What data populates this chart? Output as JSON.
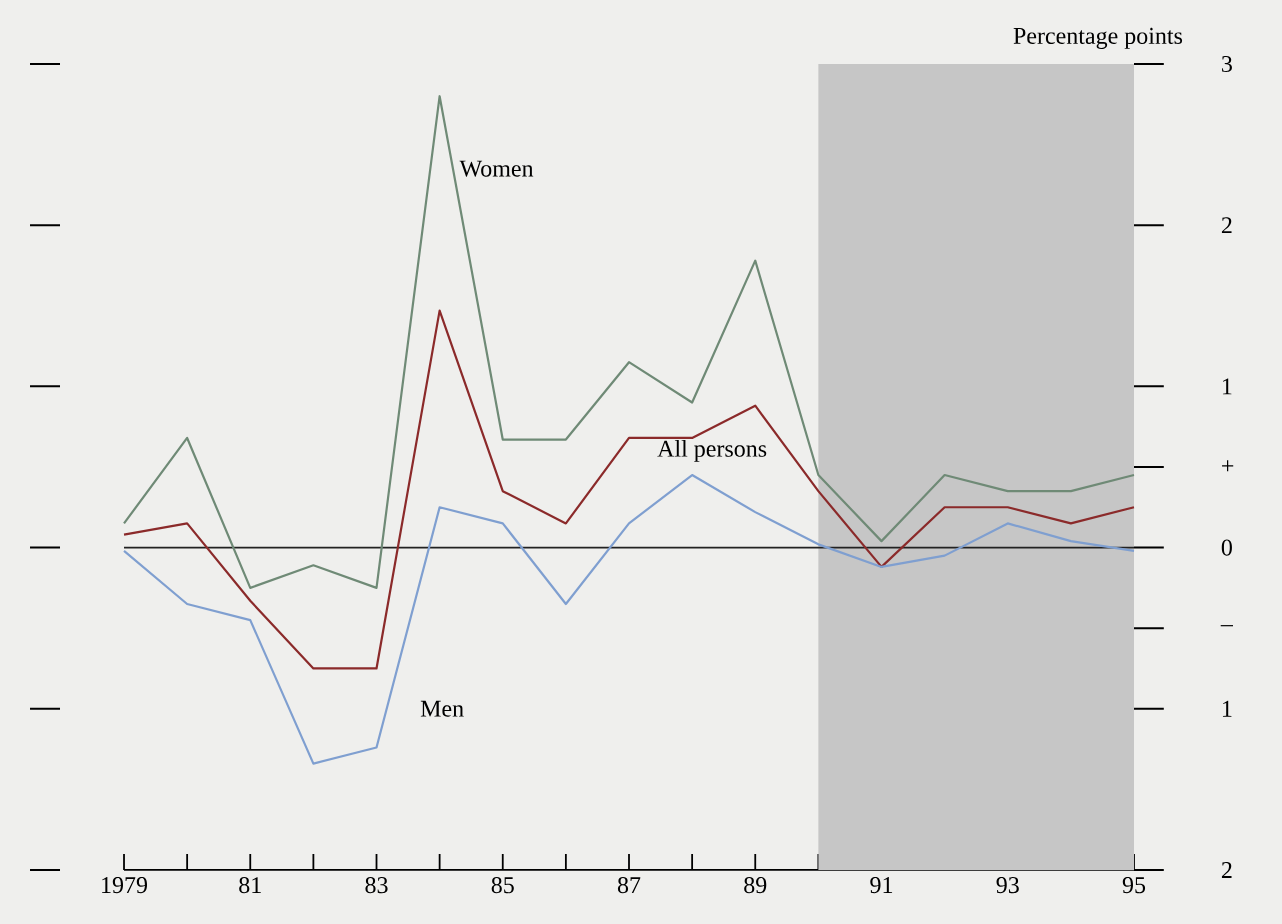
{
  "chart_data": {
    "type": "line",
    "ylabel": "Percentage points",
    "x": [
      1979,
      1980,
      1981,
      1982,
      1983,
      1984,
      1985,
      1986,
      1987,
      1988,
      1989,
      1990,
      1991,
      1992,
      1993,
      1994,
      1995
    ],
    "series": [
      {
        "name": "Women",
        "color": "#6f8a76",
        "values": [
          0.15,
          0.68,
          -0.25,
          -0.11,
          -0.25,
          2.8,
          0.67,
          0.67,
          1.15,
          0.9,
          1.78,
          0.45,
          0.04,
          0.45,
          0.35,
          0.35,
          0.45
        ]
      },
      {
        "name": "All persons",
        "color": "#8b2a2a",
        "values": [
          0.08,
          0.15,
          -0.33,
          -0.75,
          -0.75,
          1.47,
          0.35,
          0.15,
          0.68,
          0.68,
          0.88,
          0.35,
          -0.12,
          0.25,
          0.25,
          0.15,
          0.25
        ]
      },
      {
        "name": "Men",
        "color": "#7f9fd0",
        "values": [
          -0.02,
          -0.35,
          -0.45,
          -1.34,
          -1.24,
          0.25,
          0.15,
          -0.35,
          0.15,
          0.45,
          0.22,
          0.02,
          -0.12,
          -0.05,
          0.15,
          0.04,
          -0.02
        ]
      }
    ],
    "xlim": [
      1979,
      1995
    ],
    "xticks": [
      1979,
      {
        "value": 1980,
        "label": null
      },
      {
        "value": 1981,
        "label": "81"
      },
      {
        "value": 1982,
        "label": null
      },
      {
        "value": 1983,
        "label": "83"
      },
      {
        "value": 1984,
        "label": null
      },
      {
        "value": 1985,
        "label": "85"
      },
      {
        "value": 1986,
        "label": null
      },
      {
        "value": 1987,
        "label": "87"
      },
      {
        "value": 1988,
        "label": null
      },
      {
        "value": 1989,
        "label": "89"
      },
      {
        "value": 1990,
        "label": null
      },
      {
        "value": 1991,
        "label": "91"
      },
      {
        "value": 1992,
        "label": null
      },
      {
        "value": 1993,
        "label": "93"
      },
      {
        "value": 1994,
        "label": null
      },
      {
        "value": 1995,
        "label": "95"
      }
    ],
    "ylim": [
      -2,
      3
    ],
    "yticks": [
      3,
      2,
      1,
      {
        "value": 0.5,
        "label": "+"
      },
      0,
      {
        "value": -0.5,
        "label": "–"
      },
      {
        "value": -1,
        "label": "1"
      },
      {
        "value": -2,
        "label": "2"
      }
    ],
    "ref_lines": [
      {
        "axis": "y",
        "value": 0,
        "color": "#222222"
      }
    ],
    "bands": [
      {
        "axis": "x",
        "from": 1990,
        "to": 1995,
        "color": "#c6c6c6"
      }
    ]
  }
}
